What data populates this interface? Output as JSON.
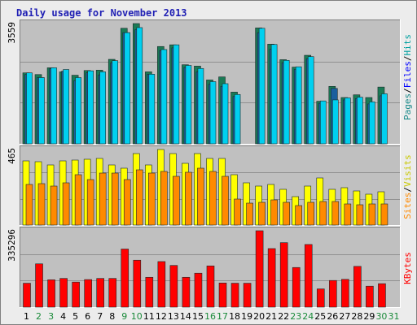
{
  "title": "Daily usage for November 2013",
  "colors": {
    "pages": "#1a7a55",
    "files": "#1a5f9e",
    "hits": "#00d0f0",
    "visits": "#ffff00",
    "sites": "#ff8a00",
    "kbytes": "#ff0000",
    "panel_bg": "#c0c0c0",
    "weekend_label": "#1a8a3a",
    "weekday_label": "#000000"
  },
  "legend": {
    "top": [
      {
        "key": "pages",
        "text": "Pages",
        "color": "#1a8a8a"
      },
      {
        "key": "files",
        "text": "Files",
        "color": "#0000ff"
      },
      {
        "key": "hits",
        "text": "Hits",
        "color": "#00a0a0"
      }
    ],
    "middle": [
      {
        "key": "sites",
        "text": "Sites",
        "color": "#ff8a00"
      },
      {
        "key": "visits",
        "text": "Visits",
        "color": "#c8c800"
      }
    ],
    "bottom": [
      {
        "key": "kbytes",
        "text": "KBytes",
        "color": "#ff0000"
      }
    ],
    "separator": "/"
  },
  "chart_data": [
    {
      "type": "bar",
      "panel": "hits-files-pages",
      "y_max_label": "3559",
      "ylim": [
        0,
        3559
      ],
      "categories": [
        "1",
        "2",
        "3",
        "4",
        "5",
        "6",
        "7",
        "8",
        "9",
        "10",
        "11",
        "12",
        "13",
        "14",
        "15",
        "16",
        "17",
        "18",
        "19",
        "20",
        "21",
        "22",
        "23",
        "24",
        "25",
        "26",
        "27",
        "28",
        "29",
        "30",
        "31"
      ],
      "series": [
        {
          "name": "Hits",
          "values": [
            2100,
            1960,
            2250,
            2200,
            1960,
            2160,
            2130,
            2460,
            3290,
            3440,
            2060,
            2790,
            2930,
            2320,
            2230,
            1840,
            1780,
            1460,
            null,
            3420,
            2940,
            2470,
            2280,
            2580,
            1270,
            1300,
            1360,
            1380,
            1240,
            1480,
            null
          ]
        },
        {
          "name": "Files",
          "values": [
            2050,
            1960,
            2220,
            2150,
            1870,
            2100,
            2040,
            2400,
            3290,
            3380,
            2060,
            2760,
            2840,
            2260,
            2130,
            1760,
            1700,
            1400,
            null,
            3290,
            2800,
            2400,
            2200,
            2520,
            1200,
            1640,
            1300,
            1340,
            1180,
            1420,
            null
          ]
        },
        {
          "name": "Pages",
          "values": [
            2100,
            2050,
            2250,
            2130,
            2030,
            2170,
            2180,
            2500,
            3420,
            3559,
            2130,
            2880,
            2930,
            2340,
            2300,
            1890,
            1980,
            1530,
            null,
            3430,
            2950,
            2490,
            2270,
            2620,
            1260,
            1700,
            1370,
            1450,
            1370,
            1680,
            null
          ]
        }
      ]
    },
    {
      "type": "bar",
      "panel": "visits-sites",
      "y_max_label": "465",
      "ylim": [
        0,
        465
      ],
      "categories": [
        "1",
        "2",
        "3",
        "4",
        "5",
        "6",
        "7",
        "8",
        "9",
        "10",
        "11",
        "12",
        "13",
        "14",
        "15",
        "16",
        "17",
        "18",
        "19",
        "20",
        "21",
        "22",
        "23",
        "24",
        "25",
        "26",
        "27",
        "28",
        "29",
        "30",
        "31"
      ],
      "series": [
        {
          "name": "Visits",
          "values": [
            395,
            390,
            370,
            395,
            400,
            405,
            410,
            370,
            350,
            440,
            370,
            465,
            440,
            380,
            440,
            410,
            410,
            310,
            260,
            240,
            250,
            220,
            175,
            240,
            290,
            220,
            230,
            210,
            190,
            205,
            null
          ]
        },
        {
          "name": "Sites",
          "values": [
            250,
            255,
            240,
            260,
            310,
            280,
            320,
            320,
            280,
            340,
            320,
            330,
            300,
            325,
            350,
            330,
            300,
            160,
            135,
            140,
            155,
            140,
            120,
            140,
            145,
            145,
            130,
            125,
            130,
            130,
            null
          ]
        }
      ]
    },
    {
      "type": "bar",
      "panel": "kbytes",
      "y_max_label": "335296",
      "ylim": [
        0,
        335296
      ],
      "categories": [
        "1",
        "2",
        "3",
        "4",
        "5",
        "6",
        "7",
        "8",
        "9",
        "10",
        "11",
        "12",
        "13",
        "14",
        "15",
        "16",
        "17",
        "18",
        "19",
        "20",
        "21",
        "22",
        "23",
        "24",
        "25",
        "26",
        "27",
        "28",
        "29",
        "30",
        "31"
      ],
      "series": [
        {
          "name": "KBytes",
          "values": [
            105000,
            190000,
            120000,
            126000,
            110000,
            121000,
            126000,
            126000,
            255000,
            206000,
            131000,
            200000,
            183000,
            131000,
            149000,
            181000,
            106000,
            105000,
            105000,
            335296,
            257000,
            283000,
            174000,
            275000,
            80000,
            117000,
            122000,
            179000,
            92000,
            103000,
            null
          ]
        }
      ]
    }
  ]
}
